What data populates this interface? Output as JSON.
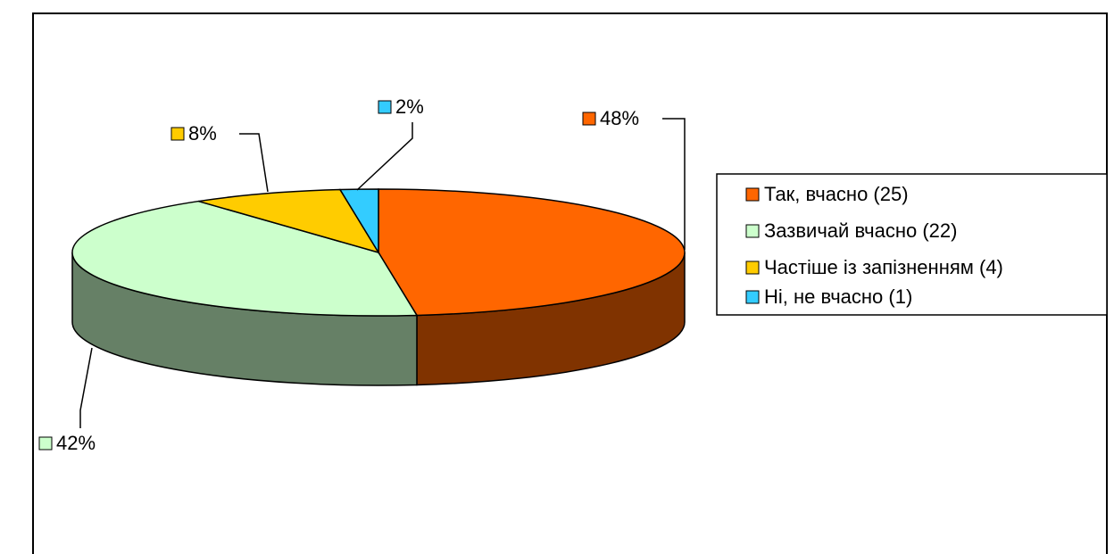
{
  "chart_data": {
    "type": "pie3d",
    "categories": [
      "Так, вчасно (25)",
      "Зазвичай вчасно (22)",
      "Частіше із запізненням (4)",
      "Ні, не вчасно (1)"
    ],
    "values": [
      48,
      42,
      8,
      2
    ],
    "value_labels": [
      "48%",
      "42%",
      "8%",
      "2%"
    ],
    "colors": [
      "#ff6600",
      "#ccffcc",
      "#ffcc00",
      "#33ccff"
    ],
    "legend": "right"
  }
}
